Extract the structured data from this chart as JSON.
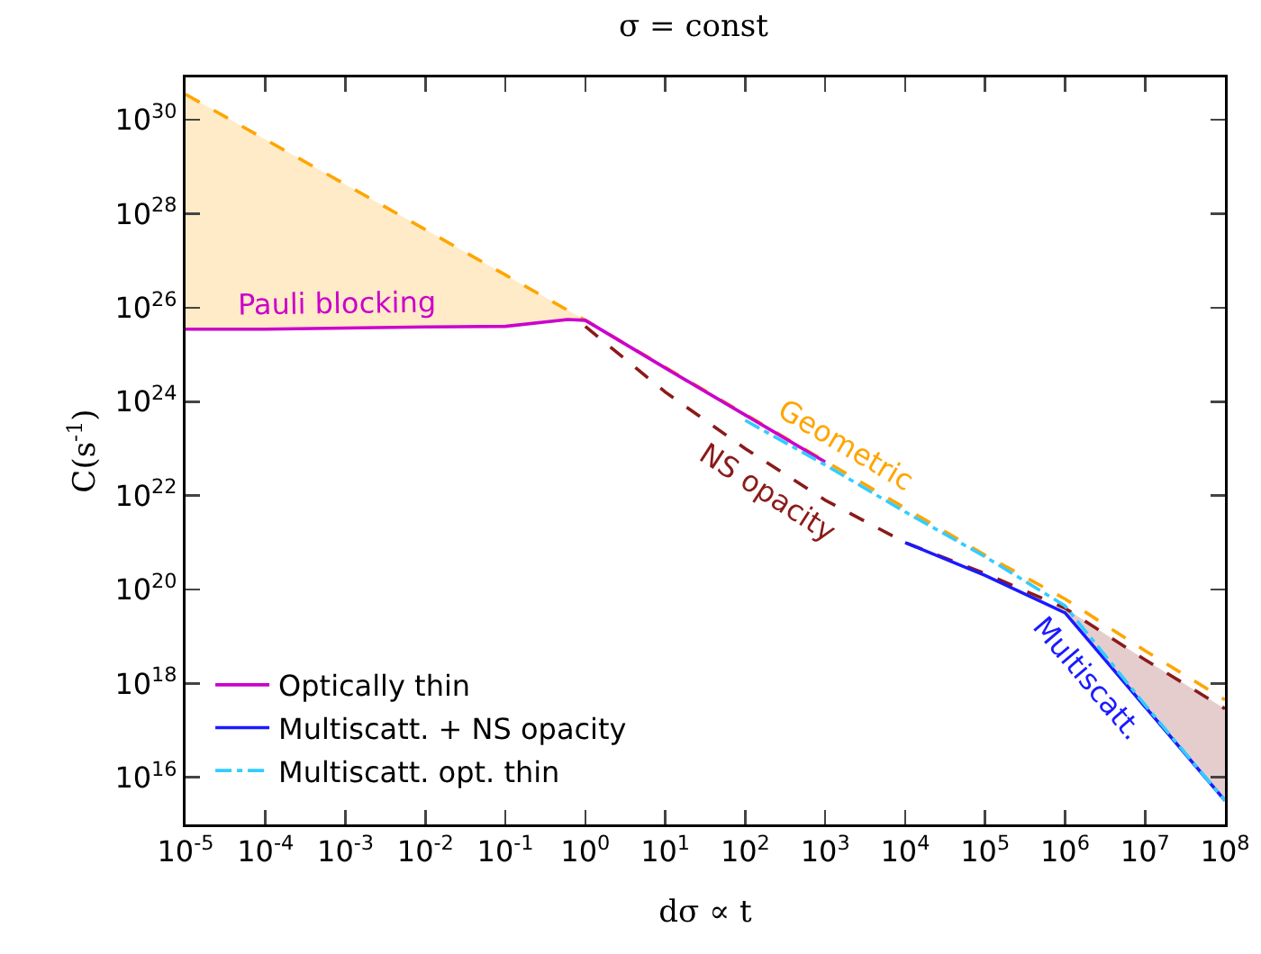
{
  "chart_data": {
    "type": "line",
    "title": "σ = const",
    "xlabel": "dσ ∝ t",
    "ylabel": "C(s$^{-1}$)",
    "log": "xy",
    "grid": false,
    "legend": "bottom left",
    "marker": "none",
    "xlim": [
      1e-05,
      100000000.0
    ],
    "ylim": [
      1000000000000000.0,
      8e+30
    ],
    "xticks": [
      {
        "value": 1e-05,
        "label": "10$^{-5}$"
      },
      {
        "value": 0.0001,
        "label": "10$^{-4}$"
      },
      {
        "value": 0.001,
        "label": "10$^{-3}$"
      },
      {
        "value": 0.01,
        "label": "10$^{-2}$"
      },
      {
        "value": 0.1,
        "label": "10$^{-1}$"
      },
      {
        "value": 1,
        "label": "10$^{0}$"
      },
      {
        "value": 10,
        "label": "10$^{1}$"
      },
      {
        "value": 100,
        "label": "10$^{2}$"
      },
      {
        "value": 1000,
        "label": "10$^{3}$"
      },
      {
        "value": 10000.0,
        "label": "10$^{4}$"
      },
      {
        "value": 100000.0,
        "label": "10$^{5}$"
      },
      {
        "value": 1000000.0,
        "label": "10$^{6}$"
      },
      {
        "value": 10000000.0,
        "label": "10$^{7}$"
      },
      {
        "value": 100000000.0,
        "label": "10$^{8}$"
      }
    ],
    "yticks": [
      {
        "value": 1e+16,
        "label": "10$^{16}$"
      },
      {
        "value": 1e+18,
        "label": "10$^{18}$"
      },
      {
        "value": 1e+20,
        "label": "10$^{20}$"
      },
      {
        "value": 1e+22,
        "label": "10$^{22}$"
      },
      {
        "value": 1e+24,
        "label": "10$^{24}$"
      },
      {
        "value": 1e+26,
        "label": "10$^{26}$"
      },
      {
        "value": 1e+28,
        "label": "10$^{28}$"
      },
      {
        "value": 1e+30,
        "label": "10$^{30}$"
      }
    ],
    "series": [
      {
        "color": "#ffa500",
        "line_style": "dashed",
        "x": [
          1e-05,
          0.0001,
          0.001,
          0.01,
          0.1,
          1,
          10,
          100,
          1000,
          10000.0,
          100000.0,
          1000000.0,
          10000000.0,
          100000000.0
        ],
        "values": [
          3.5e+30,
          3.8e+29,
          4.2e+28,
          4.6e+27,
          5e+26,
          5.4e+25,
          5.4e+24,
          5.4e+23,
          5.4e+22,
          5.4e+21,
          5.4e+20,
          6.3e+19,
          5e+18,
          4.5e+17
        ],
        "lower": [
          3.5e+25,
          3.5e+25,
          3.7e+25,
          3.9e+25,
          4e+25,
          5.4e+25,
          null,
          null,
          null,
          null,
          null,
          null,
          null,
          null
        ],
        "upper": [
          3.5e+30,
          3.8e+29,
          4.2e+28,
          4.6e+27,
          5e+26,
          5.4e+25,
          null,
          null,
          null,
          null,
          null,
          null,
          null,
          null
        ]
      },
      {
        "color": "#8b1a1a",
        "line_style": "dashed",
        "x": [
          1,
          10,
          100,
          1000,
          10000.0,
          100000.0,
          1000000.0,
          10000000.0,
          100000000.0
        ],
        "values": [
          4e+25,
          1.6e+24,
          1e+23,
          8e+21,
          1e+21,
          2.2e+20,
          4e+19,
          3.2e+18,
          2.9e+17
        ],
        "lower": [
          null,
          null,
          null,
          null,
          null,
          null,
          3.2e+19,
          3.2e+17,
          3200000000000000.0
        ],
        "upper": [
          null,
          null,
          null,
          null,
          null,
          null,
          4e+19,
          3.2e+18,
          2.9e+17
        ]
      },
      {
        "name": "Optically thin",
        "color": "#cc00cc",
        "line_style": "solid",
        "x": [
          1e-05,
          0.0001,
          0.001,
          0.01,
          0.1,
          0.6,
          1,
          10,
          100,
          1000
        ],
        "values": [
          3.5e+25,
          3.5e+25,
          3.7e+25,
          3.9e+25,
          4e+25,
          5.6e+25,
          5.4e+25,
          5.2e+24,
          5.2e+23,
          5.2e+22
        ]
      },
      {
        "name": "Multiscatt. + NS opacity",
        "color": "#1a1aff",
        "line_style": "solid",
        "x": [
          10000.0,
          100000.0,
          1000000.0,
          10000000.0,
          100000000.0
        ],
        "values": [
          1e+21,
          2e+20,
          3.2e+19,
          3.2e+17,
          3200000000000000.0
        ]
      },
      {
        "name": "Multiscatt. opt. thin",
        "color": "#33ccff",
        "line_style": "dashdot",
        "x": [
          100,
          1000,
          10000.0,
          100000.0,
          1000000.0,
          10000000.0,
          100000000.0
        ],
        "values": [
          4e+23,
          4.5e+22,
          4.5e+21,
          5e+20,
          4.5e+19,
          3.5e+17,
          3200000000000000.0
        ]
      }
    ],
    "annotations": [
      {
        "text": "Pauli blocking",
        "x": 0.0008,
        "y": 3.7e+25
      },
      {
        "text": "Geometric",
        "x": 1300,
        "y": 4.2e+22
      },
      {
        "text": "NS opacity",
        "x": 280,
        "y": 3.2e+22
      },
      {
        "text": "Multiscatt.",
        "x": 3300000.0,
        "y": 2.9e+18
      }
    ]
  }
}
